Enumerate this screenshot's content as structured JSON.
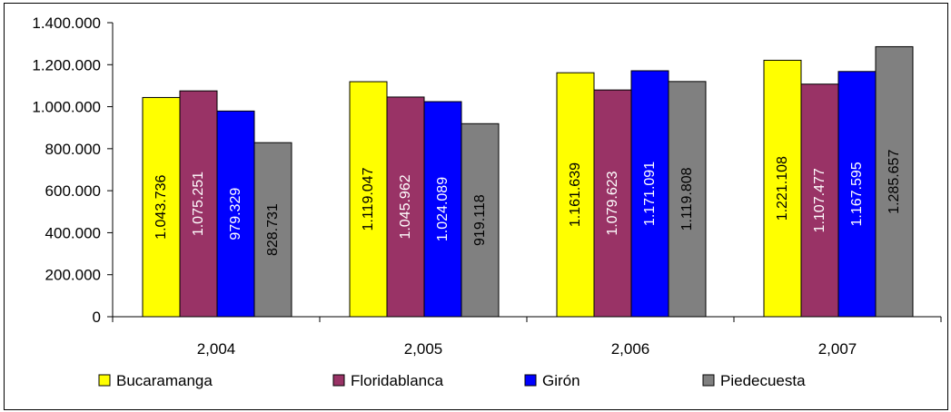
{
  "chart_data": {
    "type": "bar",
    "title": "",
    "xlabel": "",
    "ylabel": "",
    "categories": [
      "2,004",
      "2,005",
      "2,006",
      "2,007"
    ],
    "ylim": [
      0,
      1400000
    ],
    "y_ticks": [
      0,
      200000,
      400000,
      600000,
      800000,
      1000000,
      1200000,
      1400000
    ],
    "y_tick_labels": [
      "0",
      "200.000",
      "400.000",
      "600.000",
      "800.000",
      "1.000.000",
      "1.200.000",
      "1.400.000"
    ],
    "grid": false,
    "legend_position": "bottom",
    "series": [
      {
        "name": "Bucaramanga",
        "color": "#FFFF00",
        "label_color": "#000000",
        "values": [
          1043736,
          1119047,
          1161639,
          1221108
        ],
        "labels": [
          "1.043.736",
          "1.119.047",
          "1.161.639",
          "1.221.108"
        ]
      },
      {
        "name": "Floridablanca",
        "color": "#993366",
        "label_color": "#FFFFFF",
        "values": [
          1075251,
          1045962,
          1079623,
          1107477
        ],
        "labels": [
          "1.075.251",
          "1.045.962",
          "1.079.623",
          "1.107.477"
        ]
      },
      {
        "name": "Girón",
        "color": "#0000FF",
        "label_color": "#FFFFFF",
        "values": [
          979329,
          1024089,
          1171091,
          1167595
        ],
        "labels": [
          "979.329",
          "1.024.089",
          "1.171.091",
          "1.167.595"
        ]
      },
      {
        "name": "Piedecuesta",
        "color": "#808080",
        "label_color": "#000000",
        "values": [
          828731,
          919118,
          1119808,
          1285657
        ],
        "labels": [
          "828.731",
          "919.118",
          "1.119.808",
          "1.285.657"
        ]
      }
    ]
  }
}
